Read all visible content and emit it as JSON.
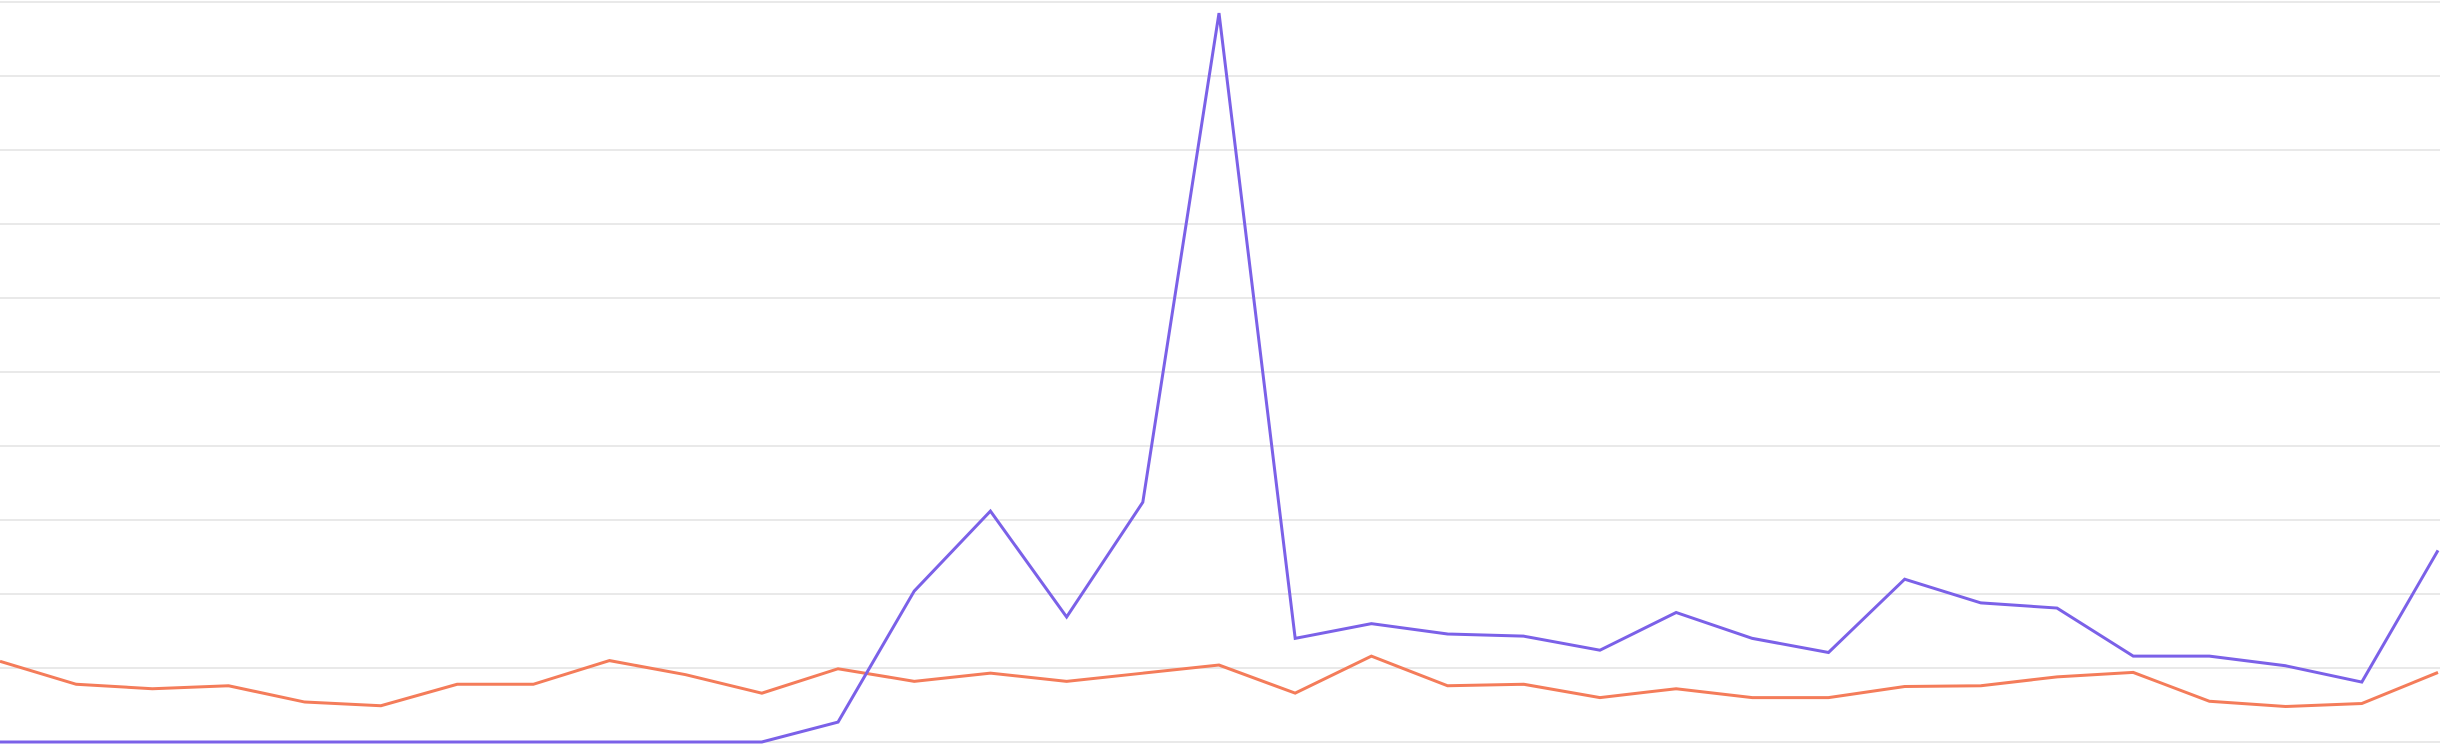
{
  "chart_data": {
    "type": "line",
    "x": [
      0,
      1,
      2,
      3,
      4,
      5,
      6,
      7,
      8,
      9,
      10,
      11,
      12,
      13,
      14,
      15,
      16,
      17,
      18,
      19,
      20,
      21,
      22,
      23,
      24,
      25,
      26,
      27,
      28,
      29,
      30,
      31,
      32
    ],
    "xlim": [
      0,
      32
    ],
    "ylim": [
      0,
      100
    ],
    "yticks": [
      0,
      10,
      20,
      30,
      40,
      50,
      60,
      70,
      80,
      90,
      100
    ],
    "grid": true,
    "series": [
      {
        "color": "#7b61e8",
        "values": [
          0,
          0,
          0,
          0,
          0,
          0,
          0,
          0,
          0,
          0,
          0,
          2.7,
          20.4,
          31.2,
          16.9,
          32.4,
          98.5,
          14.0,
          16.0,
          14.6,
          14.3,
          12.4,
          17.5,
          14.0,
          12.1,
          22.0,
          18.8,
          18.1,
          11.6,
          11.6,
          10.3,
          8.1,
          25.9
        ]
      },
      {
        "color": "#f47c5a",
        "values": [
          10.9,
          7.8,
          7.2,
          7.6,
          5.4,
          4.9,
          7.8,
          7.8,
          11.0,
          9.1,
          6.6,
          9.9,
          8.2,
          9.3,
          8.2,
          9.3,
          10.4,
          6.6,
          11.6,
          7.6,
          7.8,
          6.0,
          7.2,
          6.0,
          6.0,
          7.5,
          7.6,
          8.8,
          9.4,
          5.5,
          4.8,
          5.2,
          9.4
        ]
      }
    ]
  }
}
